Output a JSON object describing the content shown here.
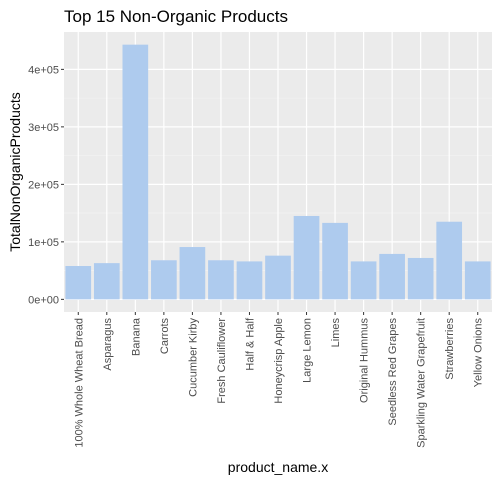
{
  "chart_data": {
    "type": "bar",
    "title": "Top 15 Non-Organic Products",
    "xlabel": "product_name.x",
    "ylabel": "TotalNonOrganicProducts",
    "categories": [
      "100% Whole Wheat Bread",
      "Asparagus",
      "Banana",
      "Carrots",
      "Cucumber Kirby",
      "Fresh Cauliflower",
      "Half & Half",
      "Honeycrisp Apple",
      "Large Lemon",
      "Limes",
      "Original Hummus",
      "Seedless Red Grapes",
      "Sparkling Water Grapefruit",
      "Strawberries",
      "Yellow Onions"
    ],
    "values": [
      58000,
      63000,
      443000,
      68000,
      91000,
      68000,
      66000,
      76000,
      145000,
      133000,
      66000,
      79000,
      72000,
      135000,
      66000
    ],
    "ylim": [
      -22000,
      465000
    ],
    "yticks": [
      0,
      100000,
      200000,
      300000,
      400000
    ],
    "ytick_labels": [
      "0e+00",
      "1e+05",
      "2e+05",
      "3e+05",
      "4e+05"
    ],
    "grid": true,
    "colors": {
      "bar": "#aecbee",
      "panel": "#ebebeb",
      "grid_major": "#ffffff",
      "grid_minor": "#f5f5f5",
      "tick_text": "#4d4d4d"
    }
  }
}
